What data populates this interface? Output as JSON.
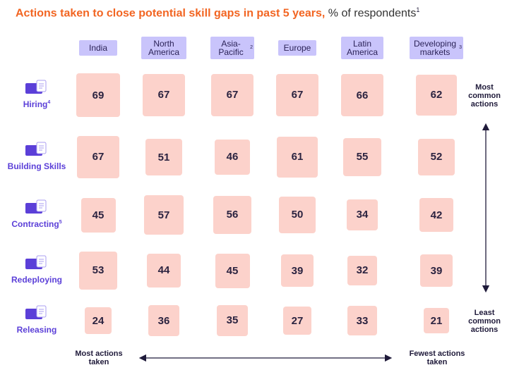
{
  "title": {
    "main": "Actions taken to close potential skill gaps in past 5 years,",
    "unit": " % of respondents",
    "footnote": "1"
  },
  "chart_data": {
    "type": "heatmap",
    "columns": [
      {
        "label": "India",
        "note": ""
      },
      {
        "label": "North America",
        "note": ""
      },
      {
        "label": "Asia-Pacific",
        "note": "2"
      },
      {
        "label": "Europe",
        "note": ""
      },
      {
        "label": "Latin America",
        "note": ""
      },
      {
        "label": "Developing markets",
        "note": "3"
      }
    ],
    "rows": [
      {
        "label": "Hiring",
        "note": "4",
        "icon": "hiring-icon",
        "values": [
          69,
          67,
          67,
          67,
          66,
          62
        ]
      },
      {
        "label": "Building Skills",
        "note": "",
        "icon": "building-skills-icon",
        "values": [
          67,
          51,
          46,
          61,
          55,
          52
        ]
      },
      {
        "label": "Contracting",
        "note": "5",
        "icon": "contracting-icon",
        "values": [
          45,
          57,
          56,
          50,
          34,
          42
        ]
      },
      {
        "label": "Redeploying",
        "note": "",
        "icon": "redeploying-icon",
        "values": [
          53,
          44,
          45,
          39,
          32,
          39
        ]
      },
      {
        "label": "Releasing",
        "note": "",
        "icon": "releasing-icon",
        "values": [
          24,
          36,
          35,
          27,
          33,
          21
        ]
      }
    ],
    "value_range": [
      21,
      69
    ]
  },
  "annotations": {
    "most_common": "Most common actions",
    "least_common": "Least common actions",
    "most_taken": "Most actions taken",
    "fewest_taken": "Fewest actions taken"
  },
  "colors": {
    "cell_fill": "#fcd2cb",
    "header_fill": "#c9c4fb",
    "row_label": "#5b3fd8",
    "title_accent": "#f26522"
  }
}
